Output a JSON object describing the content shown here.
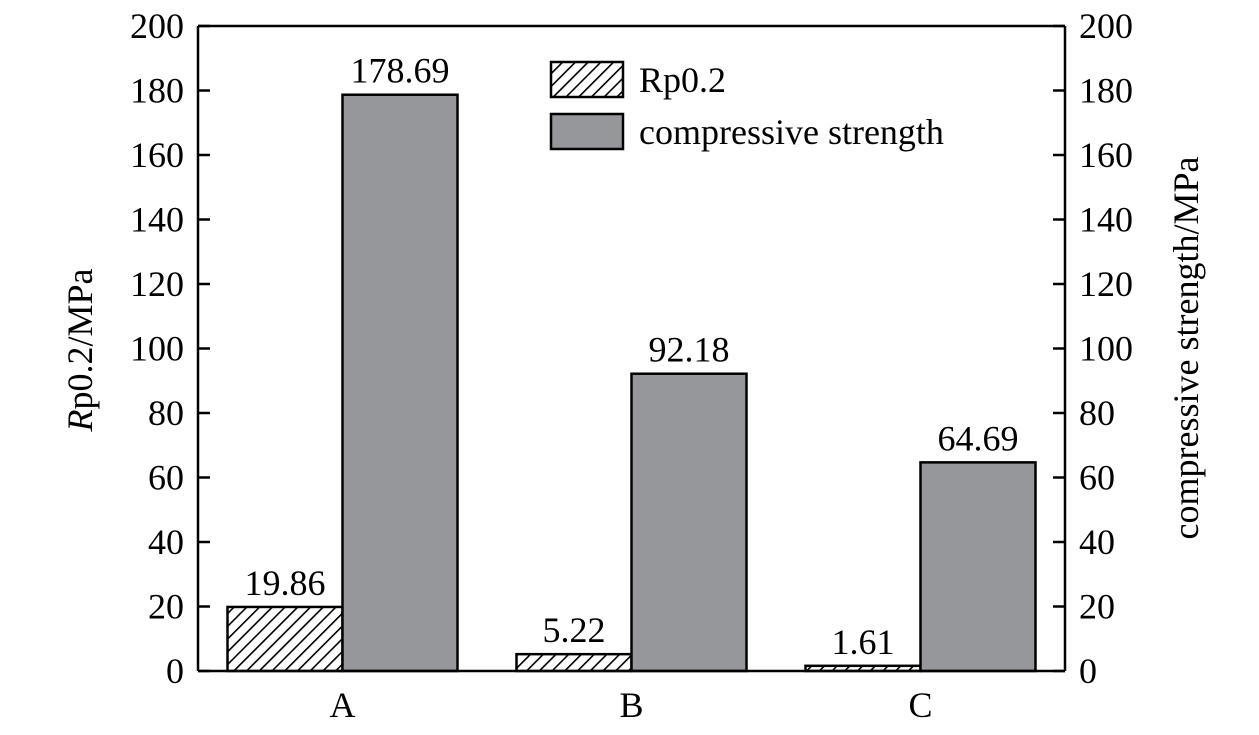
{
  "chart_data": {
    "type": "bar",
    "categories": [
      "A",
      "B",
      "C"
    ],
    "series": [
      {
        "name": "Rp0.2",
        "values": [
          19.86,
          5.22,
          1.61
        ],
        "labels": [
          "19.86",
          "5.22",
          "1.61"
        ],
        "fill": "hatch",
        "axis": "left"
      },
      {
        "name": "compressive strength",
        "values": [
          178.69,
          92.18,
          64.69
        ],
        "labels": [
          "178.69",
          "92.18",
          "64.69"
        ],
        "fill": "#96979b",
        "axis": "right"
      }
    ],
    "ylabel_left_italic": "R",
    "ylabel_left_rest": "p0.2/MPa",
    "ylabel_right": "compressive strength/MPa",
    "ylim": [
      0,
      200
    ],
    "yticks": [
      0,
      20,
      40,
      60,
      80,
      100,
      120,
      140,
      160,
      180,
      200
    ],
    "yticks_right": [
      0,
      20,
      40,
      60,
      80,
      100,
      120,
      140,
      160,
      180,
      200
    ],
    "legend_position": "top-center",
    "grid": false
  }
}
